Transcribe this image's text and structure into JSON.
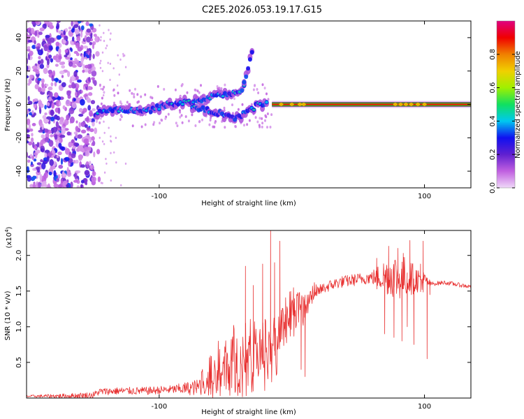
{
  "title": "C2E5.2026.053.19.17.G15",
  "chart_data": [
    {
      "type": "heatmap",
      "name": "spectrogram",
      "xlabel": "Height of straight line (km)",
      "ylabel": "Frequency (Hz)",
      "xlim": [
        -200,
        135
      ],
      "ylim": [
        -50,
        50
      ],
      "xticks": [
        "-100",
        "100"
      ],
      "xtick_values": [
        -100,
        100
      ],
      "yticks": [
        "-40",
        "-20",
        "0",
        "20",
        "40"
      ],
      "ytick_values": [
        -40,
        -20,
        0,
        20,
        40
      ],
      "colorbar": {
        "label": "Normalized spectral amplitude",
        "range": [
          0,
          1
        ],
        "ticks": [
          "0.0",
          "0.2",
          "0.4",
          "0.6",
          "0.8"
        ],
        "tick_values": [
          0,
          0.2,
          0.4,
          0.6,
          0.8
        ],
        "colormap": [
          "#f0d8f8",
          "#c060e0",
          "#6020d0",
          "#1010f0",
          "#00c8f0",
          "#10e060",
          "#a0f000",
          "#f0d000",
          "#f08000",
          "#f00000",
          "#e00080"
        ]
      },
      "features": [
        {
          "name": "scattered noise",
          "x_range": [
            -200,
            -145
          ],
          "y_range": [
            -50,
            50
          ]
        },
        {
          "name": "main tracking branch",
          "points": [
            [
              -148,
              -5
            ],
            [
              -130,
              -3
            ],
            [
              -110,
              -4
            ],
            [
              -95,
              0
            ],
            [
              -75,
              2
            ],
            [
              -60,
              5
            ],
            [
              -45,
              6
            ],
            [
              -36,
              10
            ]
          ]
        },
        {
          "name": "secondary branch",
          "points": [
            [
              -75,
              -2
            ],
            [
              -55,
              -5
            ],
            [
              -45,
              -9
            ],
            [
              -35,
              -5
            ],
            [
              -25,
              0
            ],
            [
              -18,
              2
            ]
          ]
        },
        {
          "name": "upper fragment",
          "points": [
            [
              -36,
              14
            ],
            [
              -30,
              30
            ]
          ]
        },
        {
          "name": "open-loop line",
          "x_range": [
            -15,
            135
          ],
          "y": 0
        }
      ]
    },
    {
      "type": "line",
      "name": "snr",
      "xlabel": "Height of straight line (km)",
      "ylabel": "SNR (10 * v/v)",
      "y_multiplier": "(x10",
      "y_multiplier_exp": "4",
      "y_multiplier_close": ")",
      "xlim": [
        -200,
        135
      ],
      "ylim": [
        0,
        23500
      ],
      "xticks": [
        "-100",
        "100"
      ],
      "xtick_values": [
        -100,
        100
      ],
      "yticks": [
        "0.5",
        "1.0",
        "1.5",
        "2.0"
      ],
      "ytick_values": [
        5000,
        10000,
        15000,
        20000
      ],
      "series": [
        {
          "name": "SNR",
          "color": "#e83030",
          "anchors": [
            [
              -200,
              250
            ],
            [
              -170,
              300
            ],
            [
              -150,
              400
            ],
            [
              -145,
              900
            ],
            [
              -130,
              1000
            ],
            [
              -110,
              1000
            ],
            [
              -90,
              1200
            ],
            [
              -70,
              1500
            ],
            [
              -60,
              2500
            ],
            [
              -50,
              4000
            ],
            [
              -42,
              5500
            ],
            [
              -35,
              4000
            ],
            [
              -28,
              5000
            ],
            [
              -20,
              5500
            ],
            [
              -14,
              6000
            ],
            [
              -10,
              8500
            ],
            [
              -5,
              9500
            ],
            [
              0,
              11000
            ],
            [
              5,
              12500
            ],
            [
              10,
              12000
            ],
            [
              15,
              14500
            ],
            [
              25,
              15500
            ],
            [
              35,
              16200
            ],
            [
              45,
              16500
            ],
            [
              55,
              16800
            ],
            [
              65,
              17000
            ],
            [
              75,
              17200
            ],
            [
              85,
              17000
            ],
            [
              95,
              16600
            ],
            [
              100,
              16500
            ],
            [
              105,
              16000
            ],
            [
              115,
              16200
            ],
            [
              125,
              15900
            ],
            [
              135,
              15600
            ]
          ],
          "noise_bands": [
            [
              -200,
              0,
              150
            ],
            [
              -145,
              0,
              500
            ],
            [
              -90,
              0,
              600
            ],
            [
              -70,
              0,
              1200
            ],
            [
              -55,
              0,
              3500
            ],
            [
              -40,
              0,
              5000
            ],
            [
              -30,
              0,
              4500
            ],
            [
              -18,
              0,
              5000
            ],
            [
              -5,
              0,
              3500
            ],
            [
              10,
              0,
              2000
            ],
            [
              20,
              0,
              800
            ],
            [
              60,
              0,
              900
            ],
            [
              70,
              0,
              2500
            ],
            [
              80,
              0,
              3500
            ],
            [
              100,
              0,
              1200
            ],
            [
              105,
              0,
              300
            ],
            [
              135,
              0,
              300
            ]
          ],
          "spikes": [
            [
              -35,
              18500
            ],
            [
              -29,
              15800
            ],
            [
              -22,
              18800
            ],
            [
              -16,
              23500
            ],
            [
              -13,
              19000
            ],
            [
              -9,
              22000
            ],
            [
              -5,
              10800
            ],
            [
              7,
              4000
            ],
            [
              10,
              3000
            ],
            [
              64,
              19600
            ],
            [
              70,
              9000
            ],
            [
              73,
              21300
            ],
            [
              77,
              8500
            ],
            [
              80,
              21000
            ],
            [
              83,
              8000
            ],
            [
              84,
              20300
            ],
            [
              87,
              10000
            ],
            [
              89,
              22100
            ],
            [
              92,
              7500
            ],
            [
              97,
              18800
            ],
            [
              99,
              22000
            ],
            [
              102,
              5500
            ],
            [
              104,
              16500
            ]
          ]
        }
      ]
    }
  ]
}
